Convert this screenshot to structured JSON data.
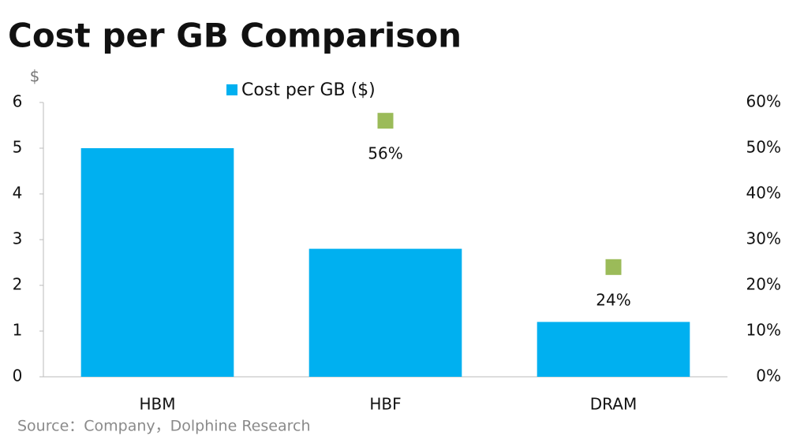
{
  "chart_data": {
    "type": "bar",
    "title": "Cost per GB Comparison",
    "y_label": "$",
    "source": "Source：Company，Dolphine Research",
    "categories": [
      "HBM",
      "HBF",
      "DRAM"
    ],
    "series": [
      {
        "name": "Cost per GB ($)",
        "color": "#00b0f0",
        "values": [
          5,
          2.8,
          1.2
        ]
      },
      {
        "type": "scatter",
        "axis": "y2",
        "color": "#9bbb59",
        "values": [
          null,
          56,
          24
        ],
        "value_labels": [
          null,
          "56%",
          "24%"
        ]
      }
    ],
    "ylim": [
      0,
      6
    ],
    "yticks": [
      0,
      1,
      2,
      3,
      4,
      5,
      6
    ],
    "y2lim": [
      0,
      60
    ],
    "y2ticks": [
      {
        "value": 0,
        "label": "0%"
      },
      {
        "value": 10,
        "label": "10%"
      },
      {
        "value": 20,
        "label": "20%"
      },
      {
        "value": 30,
        "label": "30%"
      },
      {
        "value": 40,
        "label": "40%"
      },
      {
        "value": 50,
        "label": "50%"
      },
      {
        "value": 60,
        "label": "60%"
      }
    ],
    "legend": "top"
  }
}
